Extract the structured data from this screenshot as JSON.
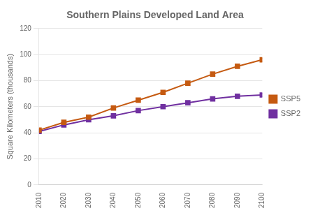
{
  "chart_data": {
    "type": "line",
    "title": "Southern Plains Developed Land Area",
    "ylabel": "Square Kilometers (thousands)",
    "x": [
      2010,
      2020,
      2030,
      2040,
      2050,
      2060,
      2070,
      2080,
      2090,
      2100
    ],
    "series": [
      {
        "name": "SSP5",
        "color": "#C55A11",
        "marker": "square",
        "values": [
          42,
          48,
          52,
          59,
          65,
          71,
          78,
          85,
          91,
          96
        ]
      },
      {
        "name": "SSP2",
        "color": "#7030A0",
        "marker": "square",
        "values": [
          41,
          46,
          50,
          53,
          57,
          60,
          63,
          66,
          68,
          69
        ]
      }
    ],
    "xlim": [
      2010,
      2100
    ],
    "xticks": [
      2010,
      2020,
      2030,
      2040,
      2050,
      2060,
      2070,
      2080,
      2090,
      2100
    ],
    "ylim": [
      0,
      120
    ],
    "yticks": [
      0,
      20,
      40,
      60,
      80,
      100,
      120
    ],
    "grid": "y",
    "legend": "right"
  }
}
